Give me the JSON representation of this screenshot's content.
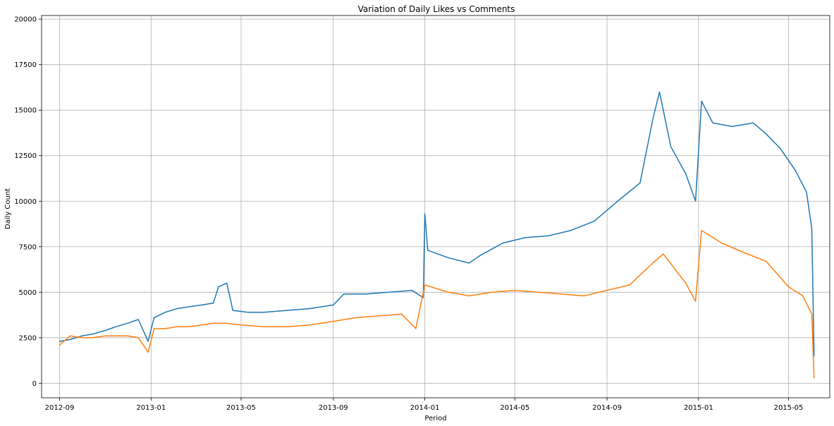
{
  "chart_data": {
    "type": "line",
    "title": "Variation of Daily Likes vs Comments",
    "xlabel": "Period",
    "ylabel": "Daily Count",
    "x_range": [
      "2012-08-08",
      "2015-06-25"
    ],
    "ylim": [
      -800,
      20200
    ],
    "grid": true,
    "x_ticks": [
      "2012-09",
      "2013-01",
      "2013-05",
      "2013-09",
      "2014-01",
      "2014-05",
      "2014-09",
      "2015-01",
      "2015-05"
    ],
    "y_ticks": [
      0,
      2500,
      5000,
      7500,
      10000,
      12500,
      15000,
      17500,
      20000
    ],
    "series": [
      {
        "color": "#1f77b4",
        "points": [
          [
            "2012-09-01",
            2300
          ],
          [
            "2012-09-15",
            2400
          ],
          [
            "2012-10-01",
            2600
          ],
          [
            "2012-10-15",
            2700
          ],
          [
            "2012-11-01",
            2900
          ],
          [
            "2012-11-15",
            3100
          ],
          [
            "2012-12-01",
            3300
          ],
          [
            "2012-12-15",
            3500
          ],
          [
            "2012-12-28",
            2300
          ],
          [
            "2013-01-05",
            3600
          ],
          [
            "2013-01-20",
            3900
          ],
          [
            "2013-02-05",
            4100
          ],
          [
            "2013-02-20",
            4200
          ],
          [
            "2013-03-10",
            4300
          ],
          [
            "2013-03-25",
            4400
          ],
          [
            "2013-04-01",
            5300
          ],
          [
            "2013-04-12",
            5500
          ],
          [
            "2013-04-20",
            4000
          ],
          [
            "2013-05-10",
            3900
          ],
          [
            "2013-06-01",
            3900
          ],
          [
            "2013-07-01",
            4000
          ],
          [
            "2013-08-01",
            4100
          ],
          [
            "2013-09-01",
            4300
          ],
          [
            "2013-09-15",
            4900
          ],
          [
            "2013-10-15",
            4900
          ],
          [
            "2013-11-15",
            5000
          ],
          [
            "2013-12-15",
            5100
          ],
          [
            "2013-12-30",
            4700
          ],
          [
            "2014-01-01",
            9300
          ],
          [
            "2014-01-05",
            7300
          ],
          [
            "2014-02-01",
            6900
          ],
          [
            "2014-03-01",
            6600
          ],
          [
            "2014-03-15",
            7000
          ],
          [
            "2014-04-15",
            7700
          ],
          [
            "2014-05-15",
            8000
          ],
          [
            "2014-06-15",
            8100
          ],
          [
            "2014-07-15",
            8400
          ],
          [
            "2014-08-15",
            8900
          ],
          [
            "2014-09-15",
            10000
          ],
          [
            "2014-10-15",
            11000
          ],
          [
            "2014-11-01",
            14500
          ],
          [
            "2014-11-10",
            16000
          ],
          [
            "2014-11-25",
            13000
          ],
          [
            "2014-12-15",
            11500
          ],
          [
            "2014-12-28",
            10000
          ],
          [
            "2015-01-05",
            15500
          ],
          [
            "2015-01-20",
            14300
          ],
          [
            "2015-02-15",
            14100
          ],
          [
            "2015-03-15",
            14300
          ],
          [
            "2015-04-01",
            13700
          ],
          [
            "2015-04-20",
            12900
          ],
          [
            "2015-05-10",
            11700
          ],
          [
            "2015-05-25",
            10500
          ],
          [
            "2015-06-01",
            8500
          ],
          [
            "2015-06-04",
            1500
          ]
        ]
      },
      {
        "color": "#ff7f0e",
        "points": [
          [
            "2012-09-01",
            2100
          ],
          [
            "2012-09-15",
            2600
          ],
          [
            "2012-10-01",
            2500
          ],
          [
            "2012-10-15",
            2500
          ],
          [
            "2012-11-01",
            2600
          ],
          [
            "2012-11-15",
            2600
          ],
          [
            "2012-12-01",
            2600
          ],
          [
            "2012-12-15",
            2500
          ],
          [
            "2012-12-28",
            1700
          ],
          [
            "2013-01-05",
            3000
          ],
          [
            "2013-01-20",
            3000
          ],
          [
            "2013-02-05",
            3100
          ],
          [
            "2013-02-20",
            3100
          ],
          [
            "2013-03-10",
            3200
          ],
          [
            "2013-03-25",
            3300
          ],
          [
            "2013-04-10",
            3300
          ],
          [
            "2013-05-01",
            3200
          ],
          [
            "2013-06-01",
            3100
          ],
          [
            "2013-07-01",
            3100
          ],
          [
            "2013-08-01",
            3200
          ],
          [
            "2013-09-01",
            3400
          ],
          [
            "2013-10-01",
            3600
          ],
          [
            "2013-11-01",
            3700
          ],
          [
            "2013-12-01",
            3800
          ],
          [
            "2013-12-20",
            3000
          ],
          [
            "2014-01-01",
            5400
          ],
          [
            "2014-02-01",
            5000
          ],
          [
            "2014-03-01",
            4800
          ],
          [
            "2014-04-01",
            5000
          ],
          [
            "2014-05-01",
            5100
          ],
          [
            "2014-06-01",
            5000
          ],
          [
            "2014-07-01",
            4900
          ],
          [
            "2014-08-01",
            4800
          ],
          [
            "2014-09-01",
            5100
          ],
          [
            "2014-10-01",
            5400
          ],
          [
            "2014-11-01",
            6600
          ],
          [
            "2014-11-15",
            7100
          ],
          [
            "2014-12-15",
            5500
          ],
          [
            "2014-12-28",
            4500
          ],
          [
            "2015-01-05",
            8400
          ],
          [
            "2015-02-01",
            7700
          ],
          [
            "2015-03-01",
            7200
          ],
          [
            "2015-04-01",
            6700
          ],
          [
            "2015-05-01",
            5300
          ],
          [
            "2015-05-20",
            4800
          ],
          [
            "2015-06-01",
            3800
          ],
          [
            "2015-06-04",
            300
          ]
        ]
      }
    ]
  }
}
